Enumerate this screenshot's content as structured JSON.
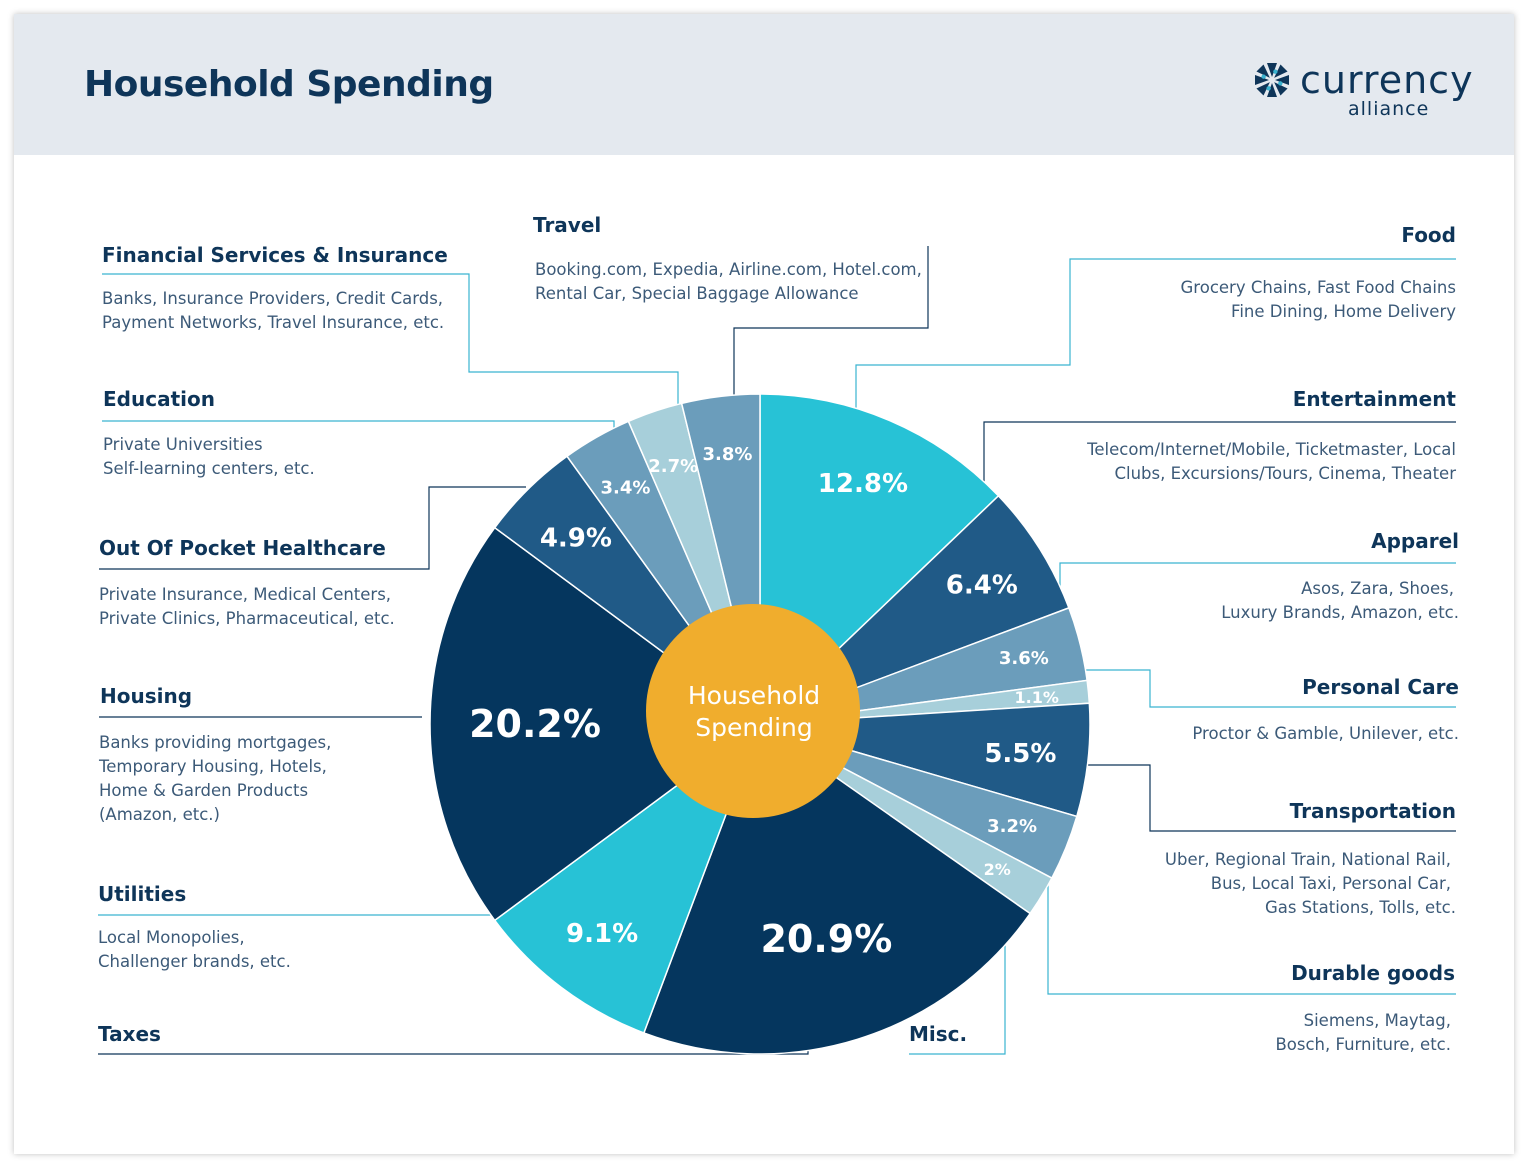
{
  "header": {
    "title": "Household Spending",
    "logo_name": "currency",
    "logo_sub": "alliance",
    "logo_icon": "star-burst-icon"
  },
  "colors": {
    "navy": "#05365e",
    "blue": "#205a87",
    "steel": "#6b9dbb",
    "light": "#a7cfda",
    "cyan": "#27c2d6",
    "orange": "#f0ad2d",
    "text": "#0e3559"
  },
  "chart_data": {
    "type": "pie",
    "center_label": [
      "Household",
      "Spending"
    ],
    "slices": [
      {
        "name": "Food",
        "value": 12.8,
        "label": "12.8%",
        "color": "#27c2d6"
      },
      {
        "name": "Entertainment",
        "value": 6.4,
        "label": "6.4%",
        "color": "#205a87"
      },
      {
        "name": "Apparel",
        "value": 3.6,
        "label": "3.6%",
        "color": "#6b9dbb"
      },
      {
        "name": "Personal Care",
        "value": 1.1,
        "label": "1.1%",
        "color": "#a7cfda"
      },
      {
        "name": "Transportation",
        "value": 5.5,
        "label": "5.5%",
        "color": "#205a87"
      },
      {
        "name": "Durable goods",
        "value": 3.2,
        "label": "3.2%",
        "color": "#6b9dbb"
      },
      {
        "name": "Misc.",
        "value": 2,
        "label": "2%",
        "color": "#a7cfda"
      },
      {
        "name": "Taxes",
        "value": 20.9,
        "label": "20.9%",
        "color": "#05365e"
      },
      {
        "name": "Utilities",
        "value": 9.1,
        "label": "9.1%",
        "color": "#27c2d6"
      },
      {
        "name": "Housing",
        "value": 20.2,
        "label": "20.2%",
        "color": "#05365e"
      },
      {
        "name": "Out Of Pocket Healthcare",
        "value": 4.9,
        "label": "4.9%",
        "color": "#205a87"
      },
      {
        "name": "Education",
        "value": 3.4,
        "label": "3.4%",
        "color": "#6b9dbb"
      },
      {
        "name": "Financial Services & Insurance",
        "value": 2.7,
        "label": "2.7%",
        "color": "#a7cfda"
      },
      {
        "name": "Travel",
        "value": 3.8,
        "label": "3.8%",
        "color": "#6b9dbb"
      }
    ]
  },
  "categories": [
    {
      "key": "financial",
      "title": "Financial Services & Insurance",
      "desc": [
        "Banks, Insurance Providers, Credit Cards,",
        "Payment Networks, Travel Insurance, etc."
      ]
    },
    {
      "key": "travel",
      "title": "Travel",
      "desc": [
        "Booking.com, Expedia, Airline.com, Hotel.com,",
        "Rental Car, Special Baggage Allowance"
      ]
    },
    {
      "key": "food",
      "title": "Food",
      "desc": [
        "Grocery Chains, Fast Food Chains",
        "Fine Dining, Home Delivery"
      ]
    },
    {
      "key": "education",
      "title": "Education",
      "desc": [
        "Private Universities",
        "Self-learning centers, etc."
      ]
    },
    {
      "key": "entertainment",
      "title": "Entertainment",
      "desc": [
        "Telecom/Internet/Mobile, Ticketmaster, Local",
        "Clubs, Excursions/Tours, Cinema, Theater"
      ]
    },
    {
      "key": "healthcare",
      "title": "Out Of Pocket Healthcare",
      "desc": [
        "Private Insurance, Medical Centers,",
        "Private Clinics, Pharmaceutical, etc."
      ]
    },
    {
      "key": "apparel",
      "title": "Apparel",
      "desc": [
        "Asos, Zara, Shoes,",
        "Luxury Brands, Amazon, etc."
      ]
    },
    {
      "key": "personal",
      "title": "Personal Care",
      "desc": [
        "Proctor & Gamble, Unilever, etc."
      ]
    },
    {
      "key": "housing",
      "title": "Housing",
      "desc": [
        "Banks providing mortgages,",
        "Temporary Housing, Hotels,",
        "Home & Garden Products",
        "(Amazon, etc.)"
      ]
    },
    {
      "key": "transportation",
      "title": "Transportation",
      "desc": [
        "Uber, Regional Train, National Rail,",
        "Bus, Local Taxi, Personal Car,",
        "Gas Stations, Tolls, etc."
      ]
    },
    {
      "key": "utilities",
      "title": "Utilities",
      "desc": [
        "Local Monopolies,",
        "Challenger brands, etc."
      ]
    },
    {
      "key": "durable",
      "title": "Durable goods",
      "desc": [
        "Siemens, Maytag,",
        "Bosch, Furniture, etc."
      ]
    },
    {
      "key": "taxes",
      "title": "Taxes",
      "desc": []
    },
    {
      "key": "misc",
      "title": "Misc.",
      "desc": []
    }
  ]
}
